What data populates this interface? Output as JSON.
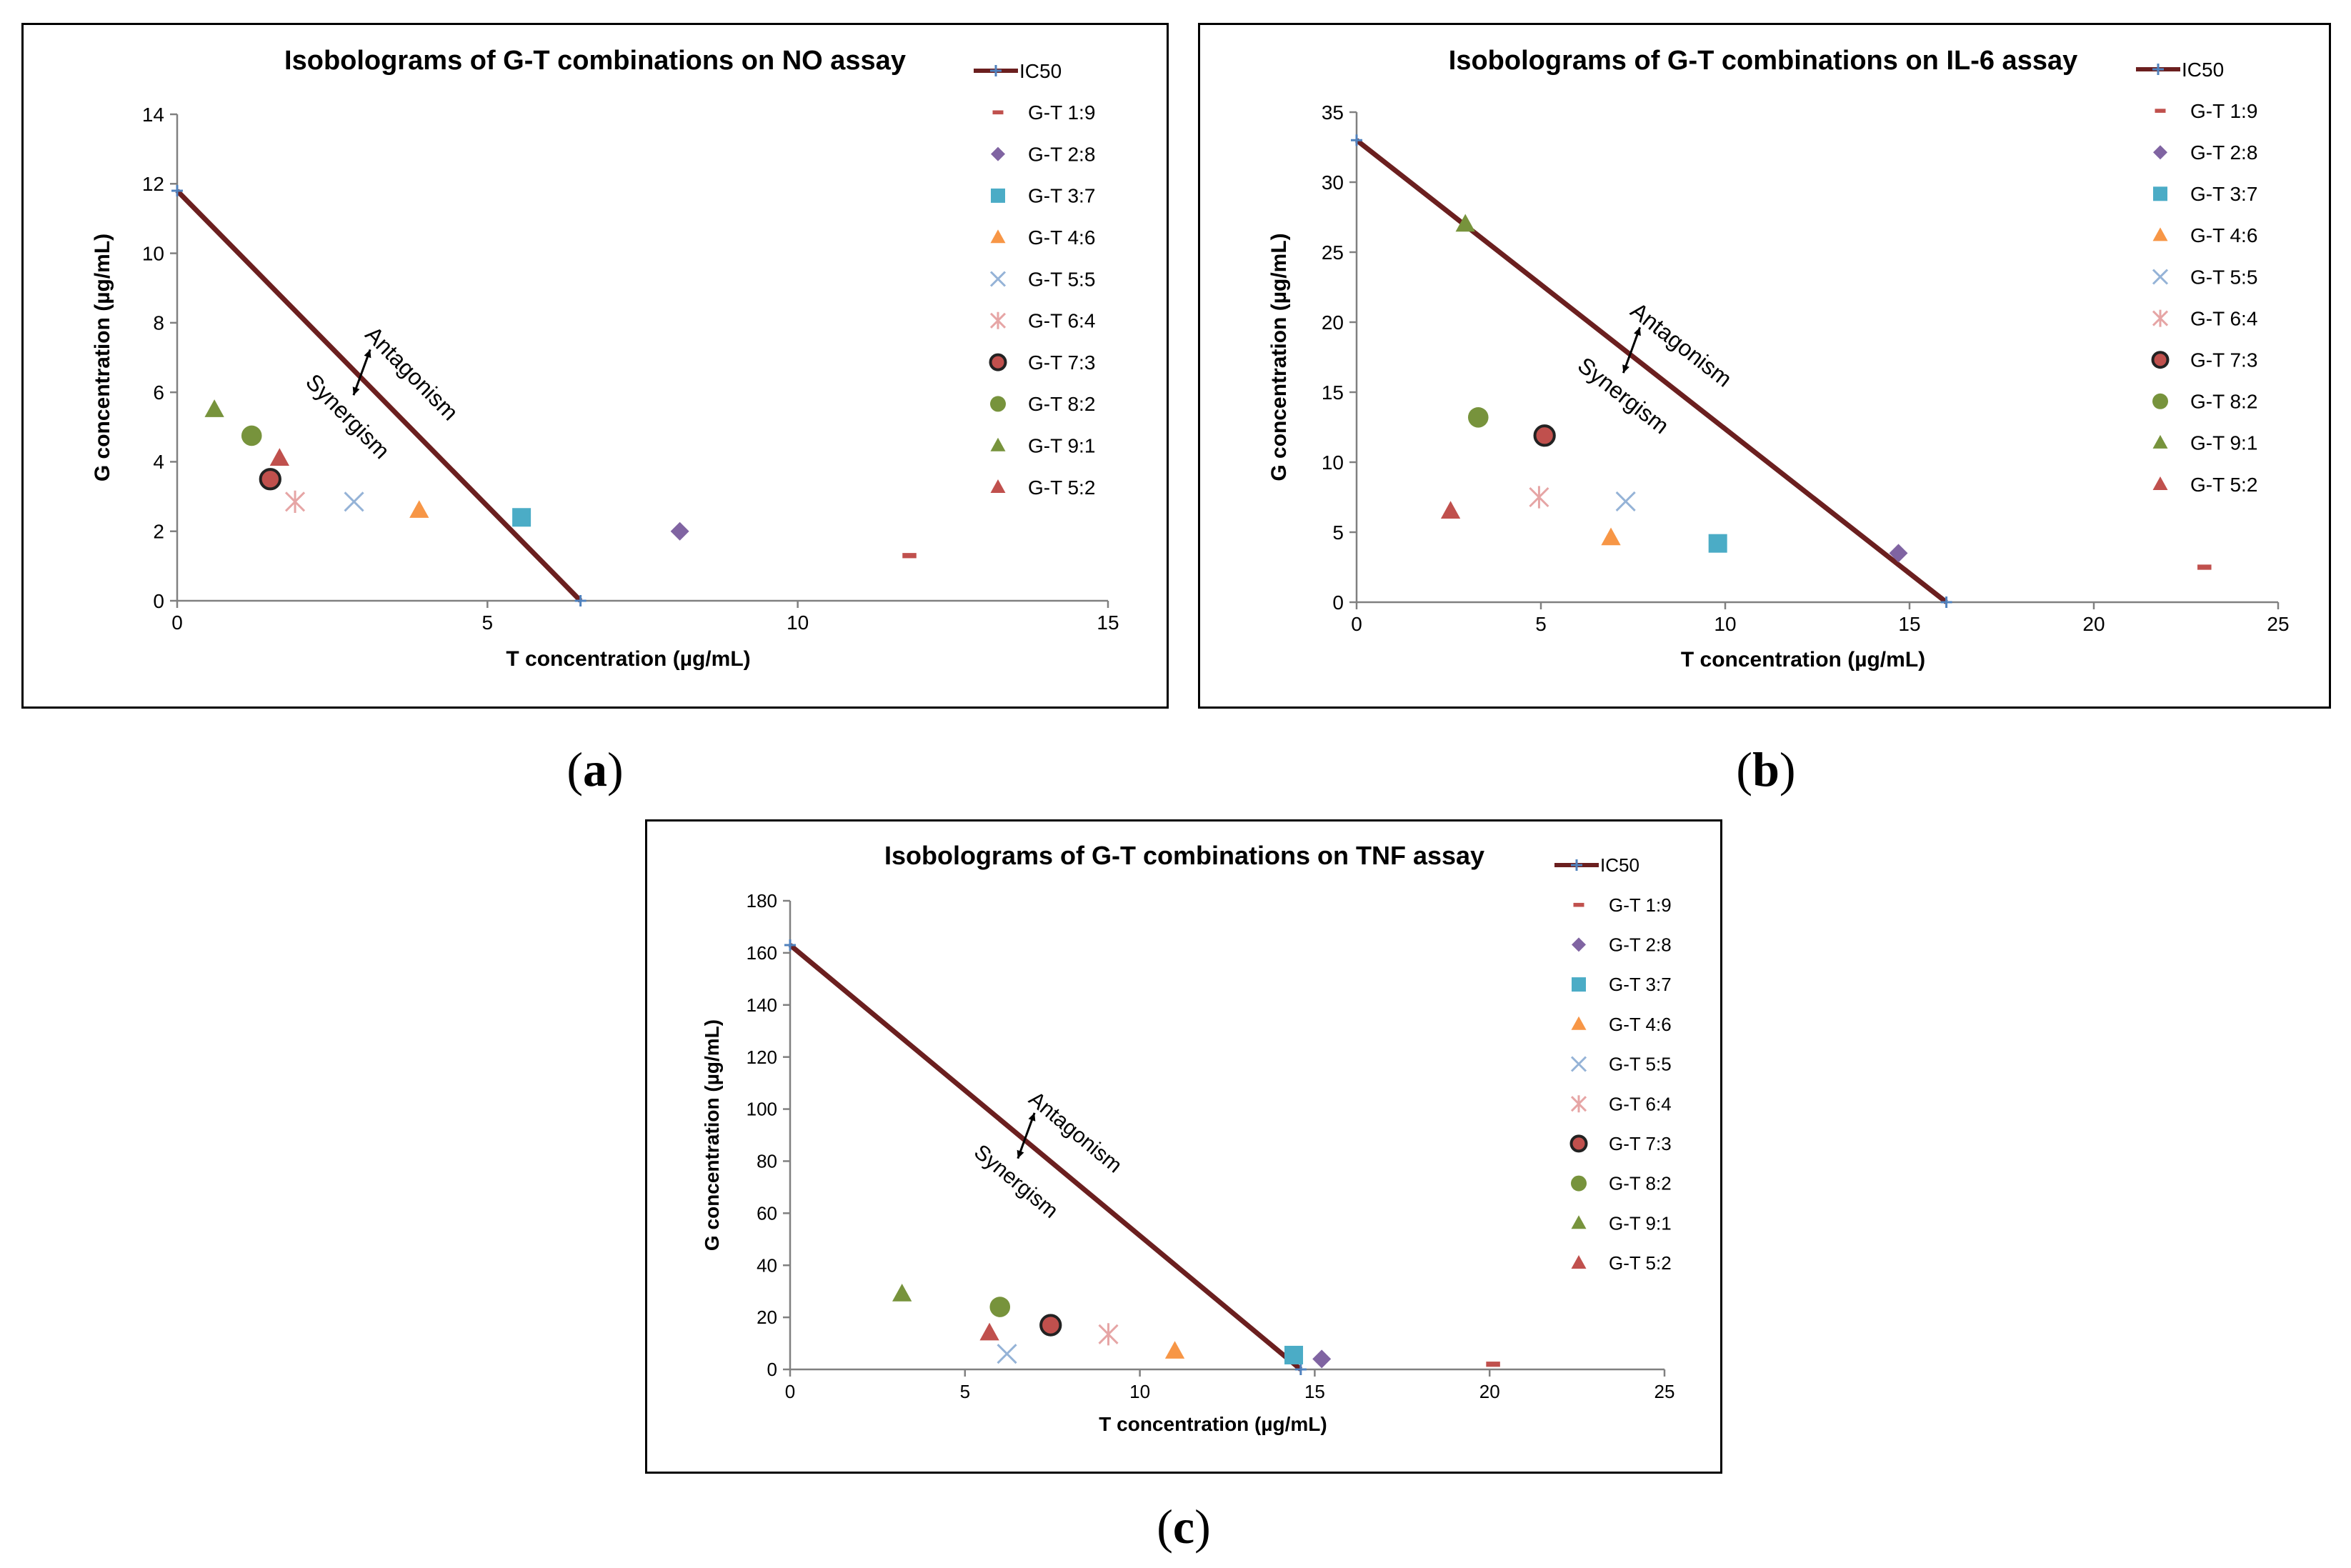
{
  "colors": {
    "ic50_line": "#6B1F1F",
    "ic50_marker": "#4F81BD",
    "axis": "#808080",
    "text": "#000000"
  },
  "captions": [
    {
      "open": "(",
      "letter": "a",
      "close": ")"
    },
    {
      "open": "(",
      "letter": "b",
      "close": ")"
    },
    {
      "open": "(",
      "letter": "c",
      "close": ")"
    }
  ],
  "chart_data": [
    {
      "type": "scatter",
      "title": "Isobolograms of G-T combinations on NO assay",
      "xlabel": "T concentration (µg/mL)",
      "ylabel": "G concentration (µg/mL)",
      "xlim": [
        0,
        15
      ],
      "ylim": [
        0,
        14
      ],
      "xticks": [
        0,
        5,
        10,
        15
      ],
      "yticks": [
        0,
        2,
        4,
        6,
        8,
        10,
        12,
        14
      ],
      "ic50_line": {
        "name": "IC50",
        "points": [
          [
            0,
            11.8
          ],
          [
            6.5,
            0
          ]
        ]
      },
      "annotations": {
        "above": "Antagonism",
        "below": "Synergism"
      },
      "series": [
        {
          "name": "G-T 1:9",
          "marker": "dash",
          "color": "#C0504D",
          "x": 11.8,
          "y": 1.3
        },
        {
          "name": "G-T 2:8",
          "marker": "diamond",
          "color": "#8064A2",
          "x": 8.1,
          "y": 2.0
        },
        {
          "name": "G-T 3:7",
          "marker": "square",
          "color": "#4BACC6",
          "x": 5.55,
          "y": 2.4
        },
        {
          "name": "G-T 4:6",
          "marker": "triangle",
          "color": "#F79646",
          "x": 3.9,
          "y": 2.6
        },
        {
          "name": "G-T 5:5",
          "marker": "x",
          "color": "#95B3D7",
          "x": 2.85,
          "y": 2.85
        },
        {
          "name": "G-T 6:4",
          "marker": "star",
          "color": "#E6A5A5",
          "x": 1.9,
          "y": 2.85
        },
        {
          "name": "G-T 7:3",
          "marker": "circle-dark",
          "color": "#C0504D",
          "x": 1.5,
          "y": 3.5
        },
        {
          "name": "G-T 8:2",
          "marker": "circle",
          "color": "#77933C",
          "x": 1.2,
          "y": 4.75
        },
        {
          "name": "G-T 9:1",
          "marker": "triangle",
          "color": "#77933C",
          "x": 0.6,
          "y": 5.5
        },
        {
          "name": "G-T 5:2",
          "marker": "triangle",
          "color": "#C0504D",
          "x": 1.65,
          "y": 4.1
        }
      ]
    },
    {
      "type": "scatter",
      "title": "Isobolograms of G-T combinations on IL-6 assay",
      "xlabel": "T concentration (µg/mL)",
      "ylabel": "G concentration (µg/mL)",
      "xlim": [
        0,
        25
      ],
      "ylim": [
        0,
        35
      ],
      "xticks": [
        0,
        5,
        10,
        15,
        20,
        25
      ],
      "yticks": [
        0,
        5,
        10,
        15,
        20,
        25,
        30,
        35
      ],
      "ic50_line": {
        "name": "IC50",
        "points": [
          [
            0,
            33
          ],
          [
            16,
            0
          ]
        ]
      },
      "annotations": {
        "above": "Antagonism",
        "below": "Synergism"
      },
      "series": [
        {
          "name": "G-T 1:9",
          "marker": "dash",
          "color": "#C0504D",
          "x": 23,
          "y": 2.5
        },
        {
          "name": "G-T 2:8",
          "marker": "diamond",
          "color": "#8064A2",
          "x": 14.7,
          "y": 3.5
        },
        {
          "name": "G-T 3:7",
          "marker": "square",
          "color": "#4BACC6",
          "x": 9.8,
          "y": 4.2
        },
        {
          "name": "G-T 4:6",
          "marker": "triangle",
          "color": "#F79646",
          "x": 6.9,
          "y": 4.6
        },
        {
          "name": "G-T 5:5",
          "marker": "x",
          "color": "#95B3D7",
          "x": 7.3,
          "y": 7.2
        },
        {
          "name": "G-T 6:4",
          "marker": "star",
          "color": "#E6A5A5",
          "x": 4.95,
          "y": 7.5
        },
        {
          "name": "G-T 7:3",
          "marker": "circle-dark",
          "color": "#C0504D",
          "x": 5.1,
          "y": 11.9
        },
        {
          "name": "G-T 8:2",
          "marker": "circle",
          "color": "#77933C",
          "x": 3.3,
          "y": 13.2
        },
        {
          "name": "G-T 9:1",
          "marker": "triangle",
          "color": "#77933C",
          "x": 2.95,
          "y": 27
        },
        {
          "name": "G-T 5:2",
          "marker": "triangle",
          "color": "#C0504D",
          "x": 2.55,
          "y": 6.5
        }
      ]
    },
    {
      "type": "scatter",
      "title": "Isobolograms of G-T combinations on TNF assay",
      "xlabel": "T concentration (µg/mL)",
      "ylabel": "G concentration (µg/mL)",
      "xlim": [
        0,
        25
      ],
      "ylim": [
        0,
        180
      ],
      "xticks": [
        0,
        5,
        10,
        15,
        20,
        25
      ],
      "yticks": [
        0,
        20,
        40,
        60,
        80,
        100,
        120,
        140,
        160,
        180
      ],
      "ic50_line": {
        "name": "IC50",
        "points": [
          [
            0,
            163
          ],
          [
            14.6,
            0
          ]
        ]
      },
      "annotations": {
        "above": "Antagonism",
        "below": "Synergism"
      },
      "series": [
        {
          "name": "G-T 1:9",
          "marker": "dash",
          "color": "#C0504D",
          "x": 20.1,
          "y": 2
        },
        {
          "name": "G-T 2:8",
          "marker": "diamond",
          "color": "#8064A2",
          "x": 15.2,
          "y": 4
        },
        {
          "name": "G-T 3:7",
          "marker": "square",
          "color": "#4BACC6",
          "x": 14.4,
          "y": 5.5
        },
        {
          "name": "G-T 4:6",
          "marker": "triangle",
          "color": "#F79646",
          "x": 11,
          "y": 7
        },
        {
          "name": "G-T 5:5",
          "marker": "x",
          "color": "#95B3D7",
          "x": 6.2,
          "y": 6
        },
        {
          "name": "G-T 6:4",
          "marker": "star",
          "color": "#E6A5A5",
          "x": 9.1,
          "y": 13.5
        },
        {
          "name": "G-T 7:3",
          "marker": "circle-dark",
          "color": "#C0504D",
          "x": 7.45,
          "y": 17
        },
        {
          "name": "G-T 8:2",
          "marker": "circle",
          "color": "#77933C",
          "x": 6,
          "y": 24
        },
        {
          "name": "G-T 9:1",
          "marker": "triangle",
          "color": "#77933C",
          "x": 3.2,
          "y": 29
        },
        {
          "name": "G-T 5:2",
          "marker": "triangle",
          "color": "#C0504D",
          "x": 5.7,
          "y": 14
        }
      ]
    }
  ]
}
